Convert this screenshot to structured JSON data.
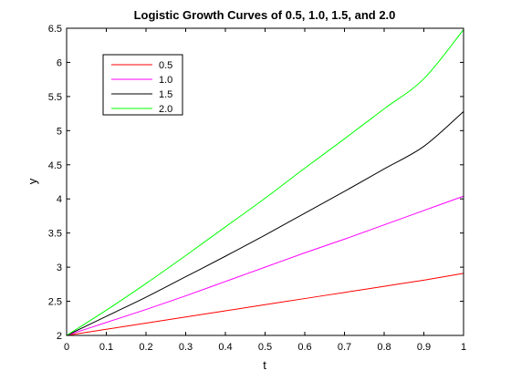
{
  "chart_data": {
    "type": "line",
    "title": "Logistic Growth Curves of 0.5, 1.0, 1.5, and 2.0",
    "xlabel": "t",
    "ylabel": "y",
    "xlim": [
      0,
      1
    ],
    "ylim": [
      2,
      6.5
    ],
    "xticks": [
      "0",
      "0.1",
      "0.2",
      "0.3",
      "0.4",
      "0.5",
      "0.6",
      "0.7",
      "0.8",
      "0.9",
      "1"
    ],
    "yticks": [
      "2",
      "2.5",
      "3",
      "3.5",
      "4",
      "4.5",
      "5",
      "5.5",
      "6",
      "6.5"
    ],
    "grid": false,
    "legend_position": "top-left",
    "x": [
      0,
      0.1,
      0.2,
      0.3,
      0.4,
      0.5,
      0.6,
      0.7,
      0.8,
      0.9,
      1.0
    ],
    "series": [
      {
        "name": "0.5",
        "color": "#ff0000",
        "values": [
          2.0,
          2.09,
          2.18,
          2.27,
          2.36,
          2.45,
          2.54,
          2.63,
          2.72,
          2.81,
          2.91
        ]
      },
      {
        "name": "1.0",
        "color": "#ff00ff",
        "values": [
          2.0,
          2.19,
          2.38,
          2.58,
          2.79,
          3.0,
          3.21,
          3.41,
          3.62,
          3.83,
          4.04
        ]
      },
      {
        "name": "1.5",
        "color": "#000000",
        "values": [
          2.0,
          2.28,
          2.56,
          2.86,
          3.16,
          3.47,
          3.79,
          4.11,
          4.44,
          4.77,
          5.28
        ]
      },
      {
        "name": "2.0",
        "color": "#00ff00",
        "values": [
          2.0,
          2.37,
          2.76,
          3.17,
          3.59,
          4.01,
          4.45,
          4.88,
          5.32,
          5.76,
          6.48
        ]
      }
    ]
  }
}
